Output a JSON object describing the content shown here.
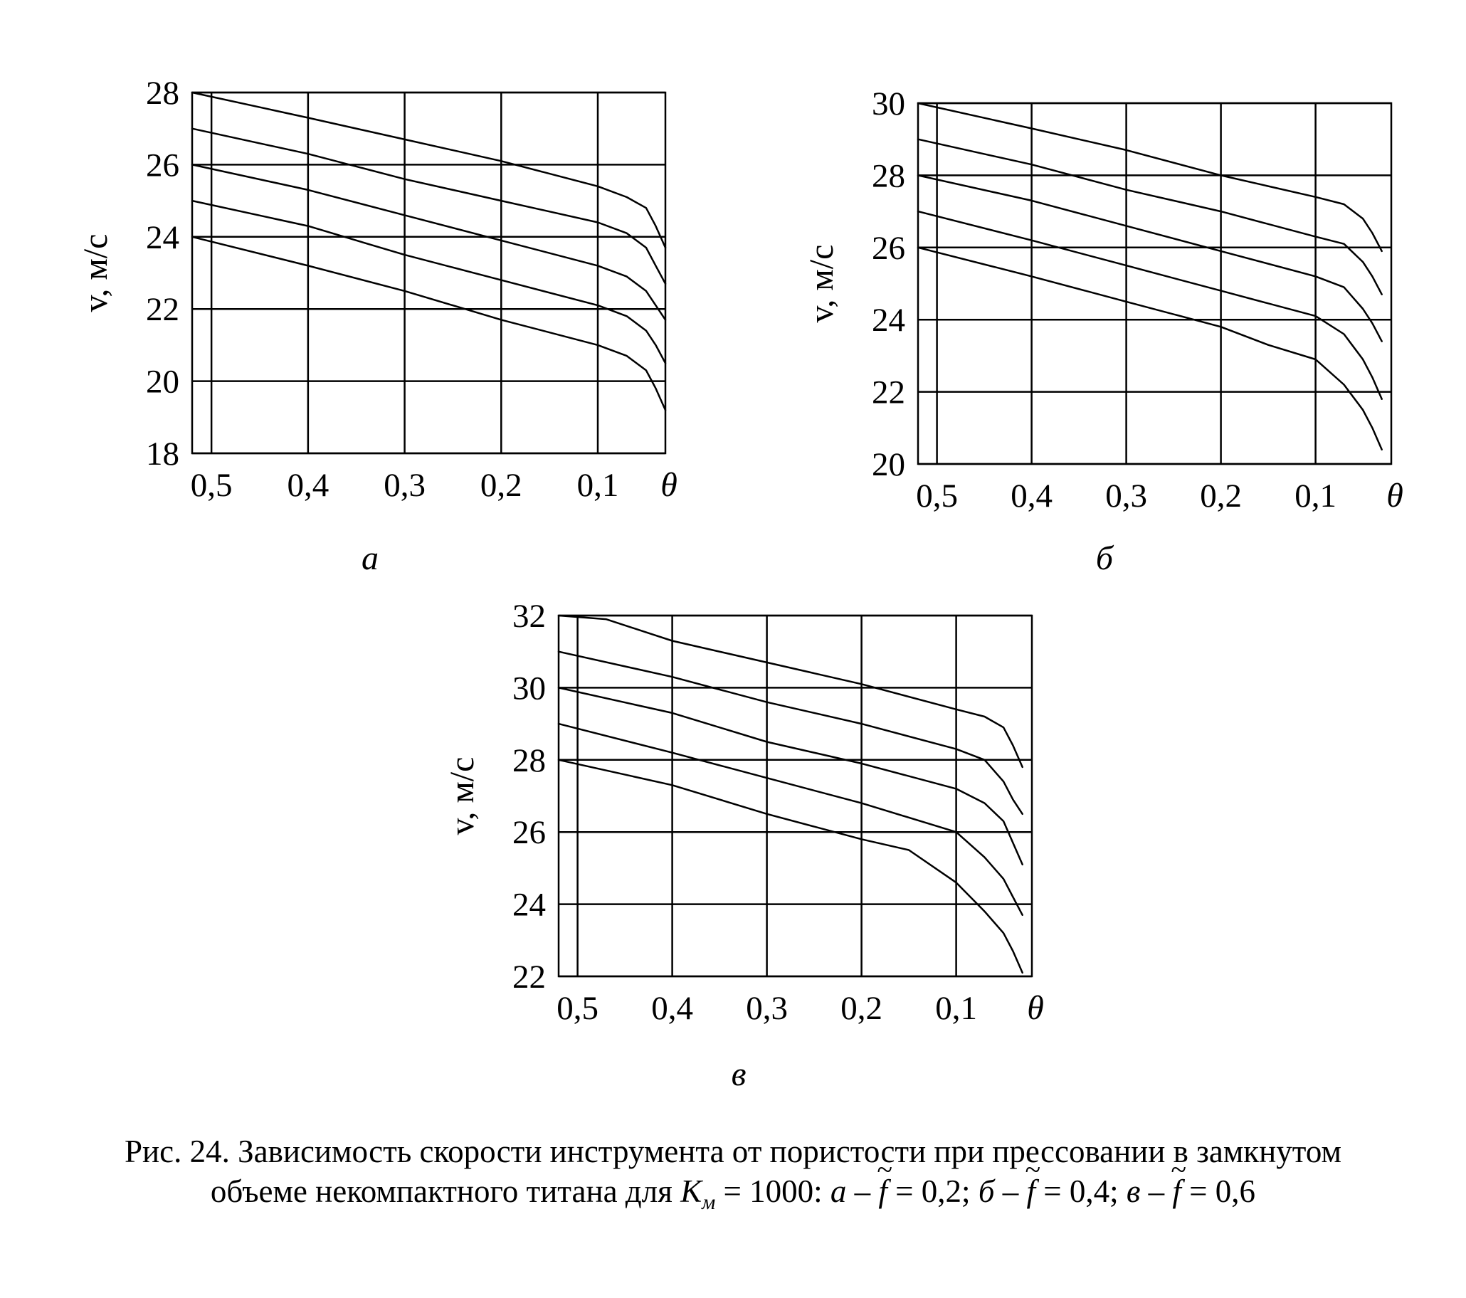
{
  "figure": {
    "caption_line1": "Рис. 24. Зависимость скорости инструмента от пористости при прессовании в замкнутом",
    "caption_line2_pre": "объеме некомпактного титана для ",
    "caption_K": "K",
    "caption_K_sub": "м",
    "caption_K_value": " = 1000: ",
    "caption_a": "а",
    "caption_a_val": " = 0,2; ",
    "caption_b": "б",
    "caption_b_val": " = 0,4; ",
    "caption_v": "в",
    "caption_v_val": " = 0,6",
    "dash": " – ",
    "f_symbol": "f"
  },
  "chart_data": [
    {
      "type": "line",
      "panel_label": "а",
      "ylabel": "v, м/с",
      "xlabel": "θ",
      "xlim": [
        0.52,
        0.03
      ],
      "ylim": [
        18,
        28
      ],
      "xticks": [
        0.5,
        0.4,
        0.3,
        0.2,
        0.1
      ],
      "xtick_labels": [
        "0,5",
        "0,4",
        "0,3",
        "0,2",
        "0,1"
      ],
      "yticks": [
        18,
        20,
        22,
        24,
        26,
        28
      ],
      "grid": true,
      "series": [
        {
          "x": [
            0.52,
            0.4,
            0.3,
            0.2,
            0.1,
            0.07,
            0.05,
            0.04,
            0.03
          ],
          "y": [
            28.0,
            27.3,
            26.7,
            26.1,
            25.4,
            25.1,
            24.8,
            24.3,
            23.7
          ]
        },
        {
          "x": [
            0.52,
            0.4,
            0.3,
            0.2,
            0.1,
            0.07,
            0.05,
            0.04,
            0.03
          ],
          "y": [
            27.0,
            26.3,
            25.6,
            25.0,
            24.4,
            24.1,
            23.7,
            23.2,
            22.7
          ]
        },
        {
          "x": [
            0.52,
            0.4,
            0.3,
            0.2,
            0.1,
            0.07,
            0.05,
            0.04,
            0.03
          ],
          "y": [
            26.0,
            25.3,
            24.6,
            23.9,
            23.2,
            22.9,
            22.5,
            22.1,
            21.7
          ]
        },
        {
          "x": [
            0.52,
            0.4,
            0.3,
            0.2,
            0.1,
            0.07,
            0.05,
            0.04,
            0.03
          ],
          "y": [
            25.0,
            24.3,
            23.5,
            22.8,
            22.1,
            21.8,
            21.4,
            21.0,
            20.5
          ]
        },
        {
          "x": [
            0.52,
            0.4,
            0.3,
            0.2,
            0.1,
            0.07,
            0.05,
            0.04,
            0.03
          ],
          "y": [
            24.0,
            23.2,
            22.5,
            21.7,
            21.0,
            20.7,
            20.3,
            19.8,
            19.2
          ]
        }
      ]
    },
    {
      "type": "line",
      "panel_label": "б",
      "ylabel": "v, м/с",
      "xlabel": "θ",
      "xlim": [
        0.52,
        0.02
      ],
      "ylim": [
        20,
        30
      ],
      "xticks": [
        0.5,
        0.4,
        0.3,
        0.2,
        0.1
      ],
      "xtick_labels": [
        "0,5",
        "0,4",
        "0,3",
        "0,2",
        "0,1"
      ],
      "yticks": [
        20,
        22,
        24,
        26,
        28,
        30
      ],
      "grid": true,
      "series": [
        {
          "x": [
            0.52,
            0.4,
            0.3,
            0.2,
            0.1,
            0.07,
            0.05,
            0.04,
            0.03
          ],
          "y": [
            30.0,
            29.3,
            28.7,
            28.0,
            27.4,
            27.2,
            26.8,
            26.4,
            25.9
          ]
        },
        {
          "x": [
            0.52,
            0.4,
            0.3,
            0.2,
            0.1,
            0.07,
            0.05,
            0.04,
            0.03
          ],
          "y": [
            29.0,
            28.3,
            27.6,
            27.0,
            26.3,
            26.1,
            25.6,
            25.2,
            24.7
          ]
        },
        {
          "x": [
            0.52,
            0.4,
            0.3,
            0.2,
            0.1,
            0.07,
            0.05,
            0.04,
            0.03
          ],
          "y": [
            28.0,
            27.3,
            26.6,
            25.9,
            25.2,
            24.9,
            24.3,
            23.9,
            23.4
          ]
        },
        {
          "x": [
            0.52,
            0.4,
            0.3,
            0.2,
            0.1,
            0.07,
            0.05,
            0.04,
            0.03
          ],
          "y": [
            27.0,
            26.2,
            25.5,
            24.8,
            24.1,
            23.6,
            22.9,
            22.4,
            21.8
          ]
        },
        {
          "x": [
            0.52,
            0.4,
            0.3,
            0.2,
            0.15,
            0.1,
            0.07,
            0.05,
            0.04,
            0.03
          ],
          "y": [
            26.0,
            25.2,
            24.5,
            23.8,
            23.3,
            22.9,
            22.2,
            21.5,
            21.0,
            20.4
          ]
        }
      ]
    },
    {
      "type": "line",
      "panel_label": "в",
      "ylabel": "v, м/с",
      "xlabel": "θ",
      "xlim": [
        0.52,
        0.02
      ],
      "ylim": [
        22,
        32
      ],
      "xticks": [
        0.5,
        0.4,
        0.3,
        0.2,
        0.1
      ],
      "xtick_labels": [
        "0,5",
        "0,4",
        "0,3",
        "0,2",
        "0,1"
      ],
      "yticks": [
        22,
        24,
        26,
        28,
        30,
        32
      ],
      "grid": true,
      "series": [
        {
          "x": [
            0.52,
            0.47,
            0.4,
            0.3,
            0.2,
            0.1,
            0.07,
            0.05,
            0.04,
            0.03
          ],
          "y": [
            32.0,
            31.9,
            31.3,
            30.7,
            30.1,
            29.4,
            29.2,
            28.9,
            28.4,
            27.8
          ]
        },
        {
          "x": [
            0.52,
            0.4,
            0.3,
            0.2,
            0.1,
            0.07,
            0.05,
            0.04,
            0.03
          ],
          "y": [
            31.0,
            30.3,
            29.6,
            29.0,
            28.3,
            28.0,
            27.4,
            26.9,
            26.5
          ]
        },
        {
          "x": [
            0.52,
            0.4,
            0.3,
            0.2,
            0.1,
            0.07,
            0.05,
            0.04,
            0.03
          ],
          "y": [
            30.0,
            29.3,
            28.5,
            27.9,
            27.2,
            26.8,
            26.3,
            25.7,
            25.1
          ]
        },
        {
          "x": [
            0.52,
            0.4,
            0.3,
            0.2,
            0.1,
            0.07,
            0.05,
            0.04,
            0.03
          ],
          "y": [
            29.0,
            28.2,
            27.5,
            26.8,
            26.0,
            25.3,
            24.7,
            24.2,
            23.7
          ]
        },
        {
          "x": [
            0.52,
            0.4,
            0.3,
            0.2,
            0.15,
            0.1,
            0.07,
            0.05,
            0.04,
            0.03
          ],
          "y": [
            28.0,
            27.3,
            26.5,
            25.8,
            25.5,
            24.6,
            23.8,
            23.2,
            22.7,
            22.1
          ]
        }
      ]
    }
  ]
}
